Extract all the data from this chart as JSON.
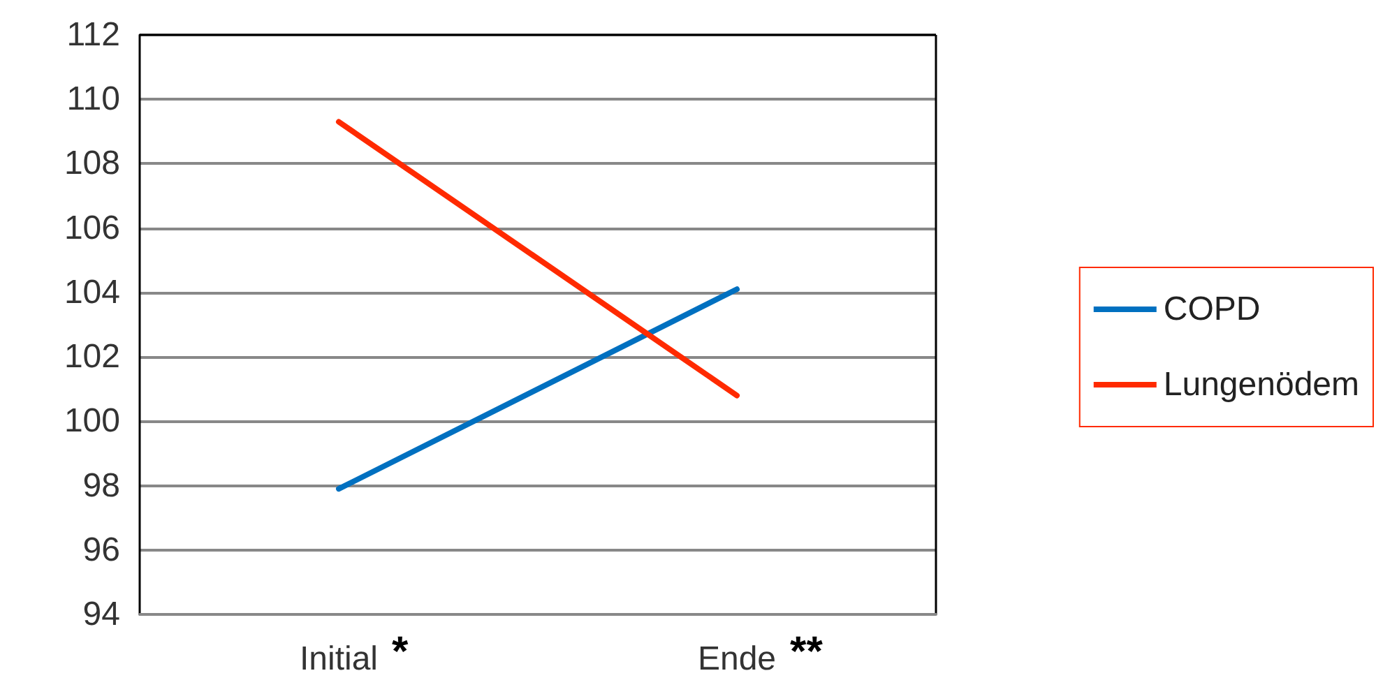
{
  "chart_data": {
    "type": "line",
    "categories": [
      "Initial",
      "Ende"
    ],
    "series": [
      {
        "name": "COPD",
        "color": "#0070c0",
        "values": [
          97.9,
          104.1
        ]
      },
      {
        "name": "Lungenödem",
        "color": "#ff2a00",
        "values": [
          109.3,
          100.8
        ]
      }
    ],
    "ylim": [
      94,
      112
    ],
    "yticks": [
      94,
      96,
      98,
      100,
      102,
      104,
      106,
      108,
      110,
      112
    ],
    "grid": "y",
    "legend": "right",
    "marker": "none",
    "line_style": "solid",
    "annotations": [
      "*",
      "**"
    ]
  }
}
